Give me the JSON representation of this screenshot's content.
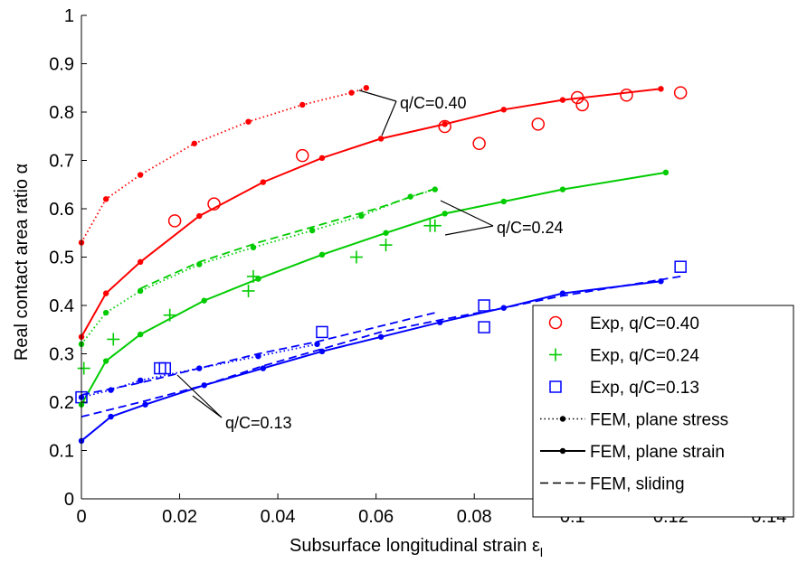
{
  "chart_data": {
    "type": "line",
    "title": "",
    "xlabel_main": "Subsurface longitudinal strain ε",
    "xlabel_sub": "l",
    "ylabel": "Real contact area ratio α",
    "xlim": [
      0,
      0.145
    ],
    "ylim": [
      0,
      1
    ],
    "x_ticks": [
      "0",
      "0.02",
      "0.04",
      "0.06",
      "0.08",
      "0.1",
      "0.12",
      "0.14"
    ],
    "y_ticks": [
      "0",
      "0.1",
      "0.2",
      "0.3",
      "0.4",
      "0.5",
      "0.6",
      "0.7",
      "0.8",
      "0.9",
      "1"
    ],
    "grid": false,
    "legend_position": "bottom-right",
    "legend": [
      {
        "label": "Exp, q/C=0.40",
        "marker": "circle",
        "color": "#ff0000"
      },
      {
        "label": "Exp, q/C=0.24",
        "marker": "plus",
        "color": "#00cc00"
      },
      {
        "label": "Exp, q/C=0.13",
        "marker": "square",
        "color": "#0000ff"
      },
      {
        "label": "FEM, plane stress",
        "marker": "dot",
        "style": "dotted",
        "color": "#000000"
      },
      {
        "label": "FEM, plane strain",
        "marker": "dot",
        "style": "solid",
        "color": "#000000"
      },
      {
        "label": "FEM, sliding",
        "marker": "none",
        "style": "dashed",
        "color": "#000000"
      }
    ],
    "annotations": [
      {
        "text": "q/C=0.40"
      },
      {
        "text": "q/C=0.24"
      },
      {
        "text": "q/C=0.13"
      }
    ],
    "series": [
      {
        "id": "exp-040",
        "marker": "circle",
        "color": "#ff0000",
        "style": "none",
        "x": [
          0.019,
          0.027,
          0.045,
          0.074,
          0.081,
          0.093,
          0.101,
          0.102,
          0.111,
          0.122
        ],
        "y": [
          0.575,
          0.61,
          0.71,
          0.77,
          0.735,
          0.775,
          0.83,
          0.815,
          0.835,
          0.84
        ]
      },
      {
        "id": "exp-024",
        "marker": "plus",
        "color": "#00cc00",
        "style": "none",
        "x": [
          0.0005,
          0.0065,
          0.018,
          0.034,
          0.035,
          0.056,
          0.062,
          0.071,
          0.072
        ],
        "y": [
          0.27,
          0.33,
          0.38,
          0.43,
          0.46,
          0.5,
          0.525,
          0.565,
          0.565
        ]
      },
      {
        "id": "exp-013",
        "marker": "square",
        "color": "#0000ff",
        "style": "none",
        "x": [
          0.0,
          0.016,
          0.017,
          0.049,
          0.082,
          0.082,
          0.122
        ],
        "y": [
          0.21,
          0.27,
          0.27,
          0.345,
          0.355,
          0.4,
          0.48
        ]
      },
      {
        "id": "stress-040",
        "marker": "dot",
        "color": "#ff0000",
        "style": "dotted",
        "x": [
          0.0,
          0.005,
          0.012,
          0.023,
          0.034,
          0.045,
          0.055,
          0.058
        ],
        "y": [
          0.53,
          0.62,
          0.67,
          0.735,
          0.78,
          0.815,
          0.84,
          0.85
        ]
      },
      {
        "id": "strain-040",
        "marker": "dot",
        "color": "#ff0000",
        "style": "solid",
        "x": [
          0.0,
          0.005,
          0.012,
          0.024,
          0.037,
          0.049,
          0.061,
          0.074,
          0.086,
          0.098,
          0.118
        ],
        "y": [
          0.335,
          0.425,
          0.49,
          0.585,
          0.655,
          0.705,
          0.745,
          0.775,
          0.805,
          0.825,
          0.848
        ]
      },
      {
        "id": "stress-024",
        "marker": "dot",
        "color": "#00cc00",
        "style": "dotted",
        "x": [
          0.0,
          0.005,
          0.012,
          0.024,
          0.035,
          0.047,
          0.057,
          0.067,
          0.072
        ],
        "y": [
          0.32,
          0.385,
          0.43,
          0.485,
          0.52,
          0.555,
          0.585,
          0.625,
          0.64
        ]
      },
      {
        "id": "strain-024",
        "marker": "dot",
        "color": "#00cc00",
        "style": "solid",
        "x": [
          0.0,
          0.005,
          0.012,
          0.025,
          0.036,
          0.049,
          0.062,
          0.074,
          0.086,
          0.098,
          0.119
        ],
        "y": [
          0.195,
          0.285,
          0.34,
          0.41,
          0.455,
          0.505,
          0.55,
          0.59,
          0.615,
          0.64,
          0.675
        ]
      },
      {
        "id": "slide-024",
        "marker": "none",
        "color": "#00cc00",
        "style": "dashed",
        "x": [
          0.012,
          0.024,
          0.036,
          0.048,
          0.06,
          0.073
        ],
        "y": [
          0.435,
          0.49,
          0.53,
          0.565,
          0.6,
          0.645
        ]
      },
      {
        "id": "stress-013",
        "marker": "dot",
        "color": "#0000ff",
        "style": "dotted",
        "x": [
          0.0,
          0.006,
          0.012,
          0.024,
          0.036,
          0.048
        ],
        "y": [
          0.21,
          0.225,
          0.245,
          0.27,
          0.295,
          0.32
        ]
      },
      {
        "id": "strain-013",
        "marker": "dot",
        "color": "#0000ff",
        "style": "solid",
        "x": [
          0.0,
          0.006,
          0.013,
          0.025,
          0.037,
          0.049,
          0.061,
          0.073,
          0.086,
          0.098,
          0.118
        ],
        "y": [
          0.12,
          0.17,
          0.195,
          0.235,
          0.27,
          0.305,
          0.335,
          0.365,
          0.395,
          0.425,
          0.45
        ]
      },
      {
        "id": "slide-013",
        "marker": "none",
        "color": "#0000ff",
        "style": "dashed",
        "x": [
          0.0,
          0.012,
          0.025,
          0.037,
          0.049,
          0.061,
          0.073,
          0.086,
          0.098,
          0.122
        ],
        "y": [
          0.17,
          0.2,
          0.235,
          0.275,
          0.31,
          0.345,
          0.37,
          0.395,
          0.42,
          0.46
        ]
      },
      {
        "id": "slide-013-b",
        "marker": "none",
        "color": "#0000ff",
        "style": "dashed",
        "x": [
          0.0,
          0.012,
          0.024,
          0.036,
          0.048,
          0.06,
          0.072
        ],
        "y": [
          0.215,
          0.24,
          0.27,
          0.3,
          0.325,
          0.355,
          0.385
        ]
      }
    ]
  }
}
